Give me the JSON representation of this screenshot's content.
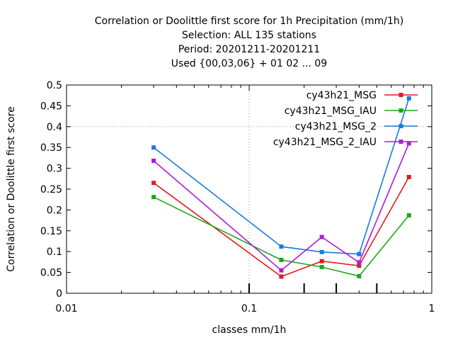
{
  "chart_data": {
    "type": "line",
    "title_lines": [
      "Correlation or Doolittle first score  for 1h Precipitation (mm/1h)",
      "Selection: ALL    135 stations",
      "Period: 20201211-20201211",
      "Used {00,03,06} + 01 02 ... 09"
    ],
    "xlabel": "classes mm/1h",
    "ylabel": "Correlation or Doolittle first score",
    "x_scale": "log",
    "xlim": [
      0.01,
      1
    ],
    "ylim": [
      0,
      0.5
    ],
    "x_ticks": [
      {
        "value": 0.01,
        "label": "0.01"
      },
      {
        "value": 0.1,
        "label": "0.1"
      },
      {
        "value": 1,
        "label": "1"
      }
    ],
    "y_ticks": [
      {
        "value": 0,
        "label": "0"
      },
      {
        "value": 0.05,
        "label": "0.05"
      },
      {
        "value": 0.1,
        "label": "0.1"
      },
      {
        "value": 0.15,
        "label": "0.15"
      },
      {
        "value": 0.2,
        "label": "0.2"
      },
      {
        "value": 0.25,
        "label": "0.25"
      },
      {
        "value": 0.3,
        "label": "0.3"
      },
      {
        "value": 0.35,
        "label": "0.35"
      },
      {
        "value": 0.4,
        "label": "0.4"
      },
      {
        "value": 0.45,
        "label": "0.45"
      },
      {
        "value": 0.5,
        "label": "0.5"
      }
    ],
    "class_markers": [
      0.1,
      0.2,
      0.3,
      0.5
    ],
    "grid": "dotted at x=0.1 and y=0.4",
    "legend_position": "top-right",
    "x": [
      0.03,
      0.15,
      0.25,
      0.4,
      0.75
    ],
    "series": [
      {
        "name": "cy43h21_MSG",
        "color": "#e41a1c",
        "values": [
          0.265,
          0.04,
          0.077,
          0.066,
          0.279
        ]
      },
      {
        "name": "cy43h21_MSG_IAU",
        "color": "#1aa81a",
        "values": [
          0.231,
          0.08,
          0.063,
          0.041,
          0.187
        ]
      },
      {
        "name": "cy43h21_MSG_2",
        "color": "#1a7ae0",
        "values": [
          0.35,
          0.112,
          0.099,
          0.094,
          0.468
        ]
      },
      {
        "name": "cy43h21_MSG_2_IAU",
        "color": "#b01ad8",
        "values": [
          0.318,
          0.055,
          0.135,
          0.074,
          0.36
        ]
      }
    ]
  }
}
